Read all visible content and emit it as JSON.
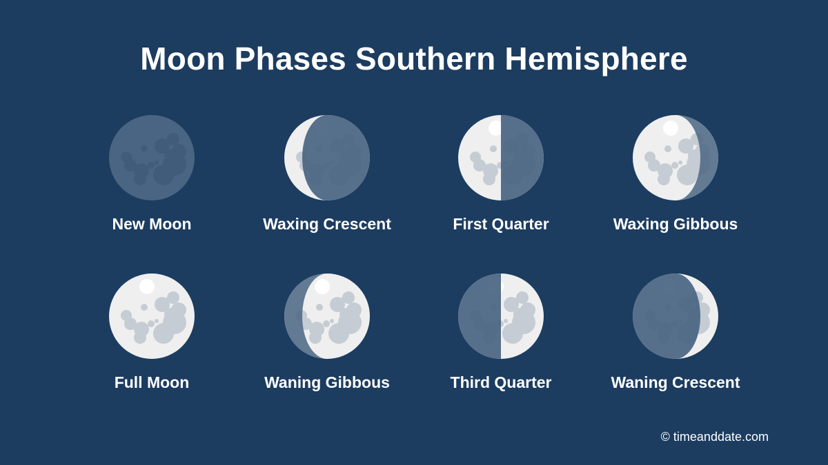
{
  "title": "Moon Phases Southern Hemisphere",
  "phases": [
    {
      "label": "New Moon"
    },
    {
      "label": "Waxing Crescent"
    },
    {
      "label": "First Quarter"
    },
    {
      "label": "Waxing Gibbous"
    },
    {
      "label": "Full Moon"
    },
    {
      "label": "Waning Gibbous"
    },
    {
      "label": "Third Quarter"
    },
    {
      "label": "Waning Crescent"
    }
  ],
  "copyright": "© timeanddate.com",
  "colors": {
    "background": "#1c3c60",
    "moon_lit": "#efefef",
    "crater_lit": "#c5ccd3",
    "highlight": "#ffffff",
    "shadow": "#4a6583"
  }
}
